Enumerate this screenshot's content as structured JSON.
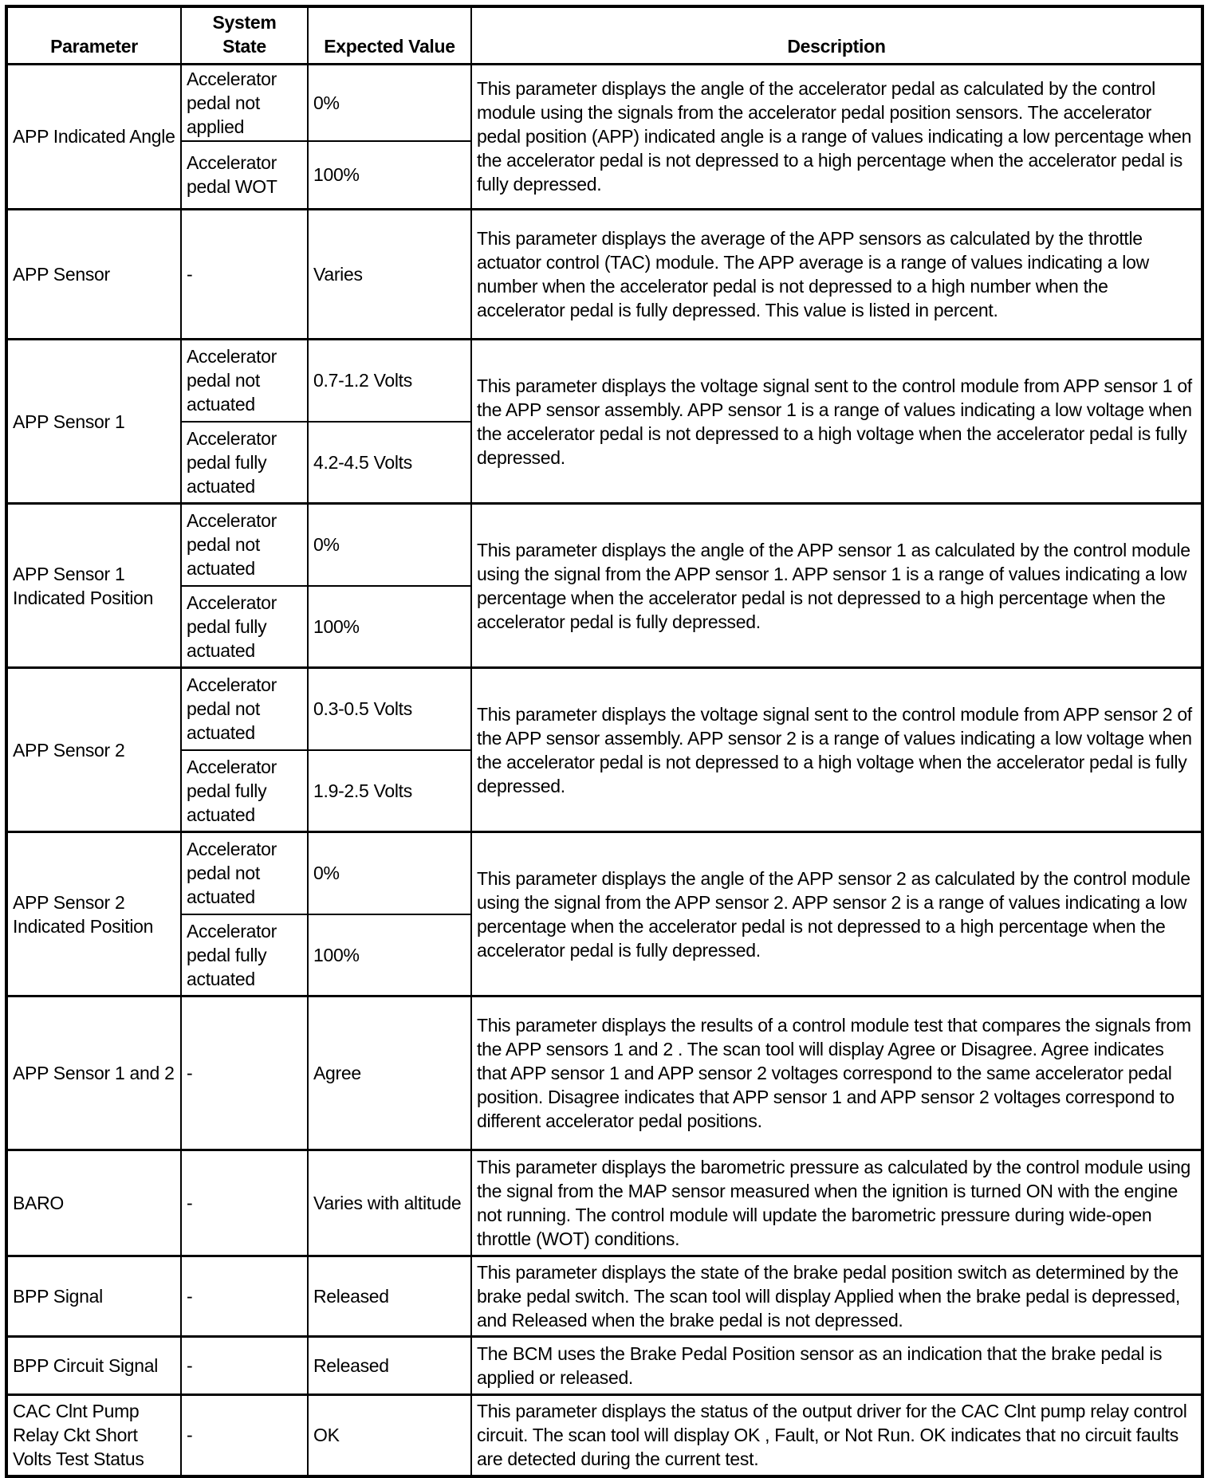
{
  "headers": {
    "parameter": "Parameter",
    "system_state": "System State",
    "expected_value": "Expected Value",
    "description": "Description"
  },
  "rows": [
    {
      "parameter": "APP Indicated Angle",
      "states": [
        {
          "state": "Accelerator pedal not applied",
          "value": "0%"
        },
        {
          "state": "Accelerator pedal WOT",
          "value": "100%"
        }
      ],
      "description": "This parameter displays the angle of the accelerator pedal as calculated by the control module using the signals from the accelerator pedal position sensors. The accelerator pedal position (APP) indicated angle is a range of values indicating a low percentage when the accelerator pedal is not depressed to a high percentage when the accelerator pedal is fully depressed."
    },
    {
      "parameter": "APP Sensor",
      "states": [
        {
          "state": "-",
          "value": "Varies"
        }
      ],
      "description": "This parameter displays the average of the APP sensors as calculated by the throttle actuator control (TAC) module. The APP average is a range of values indicating a low number when the accelerator pedal is not depressed to a high number when the accelerator pedal is fully depressed. This value is listed in percent."
    },
    {
      "parameter": "APP Sensor 1",
      "states": [
        {
          "state": "Accelerator pedal not actuated",
          "value": "0.7-1.2 Volts"
        },
        {
          "state": "Accelerator pedal fully actuated",
          "value": "4.2-4.5 Volts"
        }
      ],
      "description": "This parameter displays the voltage signal sent to the control module from APP sensor 1 of the APP sensor assembly. APP sensor 1 is a range of values indicating a low voltage when the accelerator pedal is not depressed to a high voltage when the accelerator pedal is fully depressed."
    },
    {
      "parameter": "APP Sensor 1 Indicated Position",
      "states": [
        {
          "state": "Accelerator pedal not actuated",
          "value": "0%"
        },
        {
          "state": "Accelerator pedal fully actuated",
          "value": "100%"
        }
      ],
      "description": "This parameter displays the angle of the APP sensor 1 as calculated by the control module using the signal from the APP sensor 1. APP sensor 1 is a range of values indicating a low percentage when the accelerator pedal is not depressed to a high percentage when the accelerator pedal is fully depressed."
    },
    {
      "parameter": "APP Sensor 2",
      "states": [
        {
          "state": "Accelerator pedal not actuated",
          "value": "0.3-0.5 Volts"
        },
        {
          "state": "Accelerator pedal fully actuated",
          "value": "1.9-2.5 Volts"
        }
      ],
      "description": "This parameter displays the voltage signal sent to the control module from APP sensor 2 of the APP sensor assembly. APP sensor 2 is a range of values indicating a low voltage when the accelerator pedal is not depressed to a high voltage when the accelerator pedal is fully depressed."
    },
    {
      "parameter": "APP Sensor 2 Indicated Position",
      "states": [
        {
          "state": "Accelerator pedal not actuated",
          "value": "0%"
        },
        {
          "state": "Accelerator pedal fully actuated",
          "value": "100%"
        }
      ],
      "description": "This parameter displays the angle of the APP sensor 2 as calculated by the control module using the signal from the APP sensor 2. APP sensor 2 is a range of values indicating a low percentage when the accelerator pedal is not depressed to a high percentage when the accelerator pedal is fully depressed."
    },
    {
      "parameter": "APP Sensor 1 and 2",
      "states": [
        {
          "state": "-",
          "value": "Agree"
        }
      ],
      "description": "This parameter displays the results of a control module test that compares the signals from the APP sensors 1 and 2 . The scan tool will display Agree or Disagree. Agree indicates that APP sensor 1 and APP sensor 2 voltages correspond to the same accelerator pedal position. Disagree indicates that APP sensor 1 and APP sensor 2 voltages correspond to different accelerator pedal positions."
    },
    {
      "parameter": "BARO",
      "states": [
        {
          "state": "-",
          "value": "Varies with altitude"
        }
      ],
      "description": "This parameter displays the barometric pressure as calculated by the control module using the signal from the MAP sensor measured when the ignition is turned ON with the engine not running. The control module will update the barometric pressure during wide-open throttle (WOT) conditions."
    },
    {
      "parameter": "BPP Signal",
      "states": [
        {
          "state": "-",
          "value": "Released"
        }
      ],
      "description": "This parameter displays the state of the brake pedal position switch as determined by the brake pedal switch. The scan tool will display Applied when the brake pedal is depressed, and Released when the brake pedal is not depressed."
    },
    {
      "parameter": "BPP Circuit Signal",
      "states": [
        {
          "state": "-",
          "value": "Released"
        }
      ],
      "description": "The BCM uses the Brake Pedal Position sensor as an indication that the brake pedal is applied or released."
    },
    {
      "parameter": "CAC Clnt Pump Relay Ckt Short Volts Test Status",
      "states": [
        {
          "state": "-",
          "value": "OK"
        }
      ],
      "description": "This parameter displays the status of the output driver for the CAC Clnt pump relay control circuit. The scan tool will display OK , Fault, or Not Run. OK indicates that no circuit faults are detected during the current test."
    }
  ]
}
